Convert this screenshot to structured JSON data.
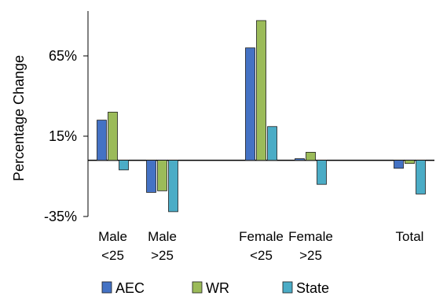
{
  "chart_data": {
    "type": "bar",
    "title": "",
    "xlabel": "",
    "ylabel": "Percentage Change",
    "ylim": [
      -35,
      90
    ],
    "yticks": [
      {
        "value": 65,
        "label": "65%"
      },
      {
        "value": 15,
        "label": "15%"
      },
      {
        "value": -35,
        "label": "-35%"
      }
    ],
    "categories": [
      {
        "line1": "Male",
        "line2": "<25"
      },
      {
        "line1": "Male",
        "line2": ">25"
      },
      {
        "line1": "",
        "line2": ""
      },
      {
        "line1": "Female",
        "line2": "<25"
      },
      {
        "line1": "Female",
        "line2": ">25"
      },
      {
        "line1": "",
        "line2": ""
      },
      {
        "line1": "Total",
        "line2": ""
      }
    ],
    "series": [
      {
        "name": "AEC",
        "color": "#4472C4",
        "values": [
          25,
          -20,
          null,
          70,
          1,
          null,
          -5
        ]
      },
      {
        "name": "WR",
        "color": "#9BBB59",
        "values": [
          30,
          -19,
          null,
          87,
          5,
          null,
          -2
        ]
      },
      {
        "name": "State",
        "color": "#4BACC6",
        "values": [
          -6,
          -32,
          null,
          21,
          -15,
          null,
          -21
        ]
      }
    ],
    "grid": false,
    "legend_position": "bottom"
  }
}
